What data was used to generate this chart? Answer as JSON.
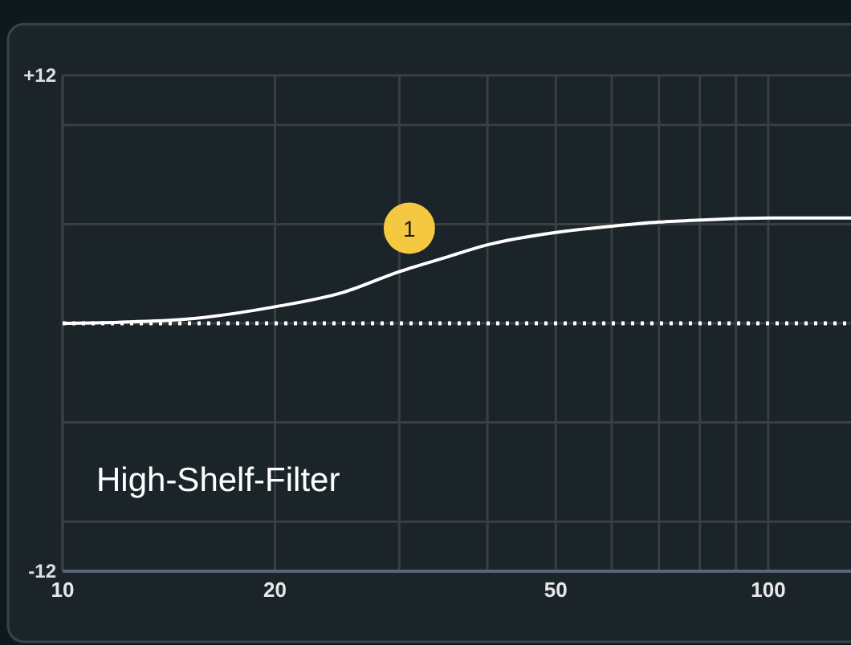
{
  "chart_data": {
    "type": "line",
    "x": [
      10,
      12,
      15,
      20,
      25,
      30,
      35,
      40,
      50,
      60,
      70,
      80,
      100,
      131
    ],
    "values": [
      0,
      0.05,
      0.2,
      0.8,
      1.5,
      2.5,
      3.2,
      3.8,
      4.4,
      4.7,
      4.9,
      5.0,
      5.1,
      5.1
    ],
    "color": "#ffffff",
    "log": "x",
    "xlim": [
      10,
      131
    ],
    "xticks": [
      10,
      20,
      {
        "value": 30,
        "label": null
      },
      {
        "value": 40,
        "label": null
      },
      50,
      {
        "value": 60,
        "label": null
      },
      {
        "value": 70,
        "label": null
      },
      {
        "value": 80,
        "label": null
      },
      {
        "value": 90,
        "label": null
      },
      100
    ],
    "ylim": [
      -12,
      12
    ],
    "yticks": [
      {
        "value": 12,
        "label": "+12"
      },
      {
        "value": 9.6,
        "label": null
      },
      {
        "value": 4.8,
        "label": null
      },
      {
        "value": 0,
        "label": null
      },
      {
        "value": -4.8,
        "label": null
      },
      {
        "value": -9.6,
        "label": null
      },
      -12
    ],
    "grid": true,
    "marker": "none",
    "line_style": "solid",
    "ref_lines": [
      {
        "axis": "y",
        "value": 0,
        "color": "#ffffff",
        "line_style": "dotted"
      }
    ],
    "annotations": [
      {
        "text": "1",
        "x": 31,
        "y": 4.6
      },
      "High-Shelf-Filter"
    ]
  }
}
